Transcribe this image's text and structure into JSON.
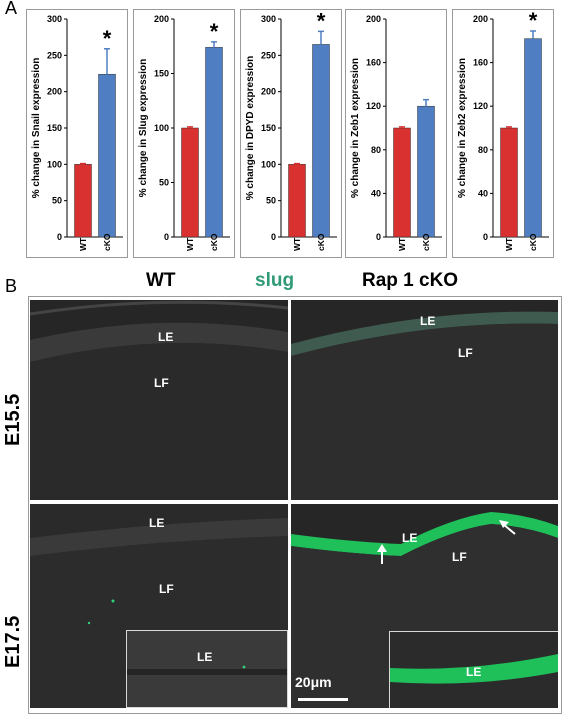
{
  "panel_a_letter": "A",
  "panel_b_letter": "B",
  "bar_colors": {
    "wt": "#d93030",
    "cko": "#4f7fc2"
  },
  "chart_data": [
    {
      "type": "bar",
      "categories": [
        "WT",
        "cKO"
      ],
      "values": [
        100,
        224
      ],
      "errors": [
        1,
        35
      ],
      "ylabel": "% change in Snail expression",
      "ylim": [
        0,
        300
      ],
      "ticks": [
        "0",
        "50",
        "100",
        "150",
        "200",
        "250",
        "300"
      ],
      "significance": "*"
    },
    {
      "type": "bar",
      "categories": [
        "WT",
        "cKO"
      ],
      "values": [
        100,
        174
      ],
      "errors": [
        1,
        5
      ],
      "ylabel": "% change in Slug expression",
      "ylim": [
        0,
        200
      ],
      "ticks": [
        "0",
        "50",
        "100",
        "150",
        "200"
      ],
      "significance": "*"
    },
    {
      "type": "bar",
      "categories": [
        "WT",
        "cKO"
      ],
      "values": [
        100,
        265
      ],
      "errors": [
        1,
        18
      ],
      "ylabel": "% change in DPYD expression",
      "ylim": [
        0,
        300
      ],
      "ticks": [
        "0",
        "50",
        "100",
        "150",
        "200",
        "250",
        "300"
      ],
      "significance": "*"
    },
    {
      "type": "bar",
      "categories": [
        "WT",
        "cKO"
      ],
      "values": [
        100,
        120
      ],
      "errors": [
        1,
        6
      ],
      "ylabel": "% change in Zeb1 expression",
      "ylim": [
        0,
        200
      ],
      "ticks": [
        "0",
        "40",
        "80",
        "120",
        "160",
        "200"
      ],
      "significance": ""
    },
    {
      "type": "bar",
      "categories": [
        "WT",
        "cKO"
      ],
      "values": [
        100,
        182
      ],
      "errors": [
        1,
        7
      ],
      "ylabel": "% change in Zeb2 expression",
      "ylim": [
        0,
        200
      ],
      "ticks": [
        "0",
        "40",
        "80",
        "120",
        "160",
        "200"
      ],
      "significance": "*"
    }
  ],
  "panel_b": {
    "col_wt": "WT",
    "col_stain": "slug",
    "col_cko": "Rap 1 cKO",
    "row_e155": "E15.5",
    "row_e175": "E17.5",
    "le": "LE",
    "lf": "LF",
    "scalebar": "20μm",
    "stain_color": "#2f9a74"
  }
}
